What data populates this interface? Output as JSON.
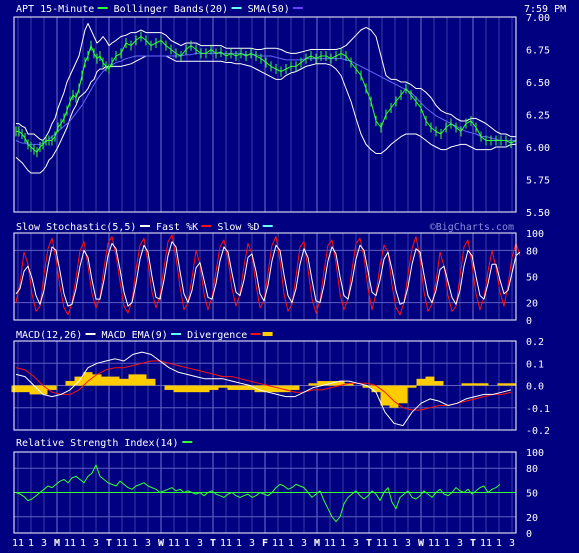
{
  "colors": {
    "background": "#000080",
    "frame": "#FFFFFF",
    "text": "#FFFFFF",
    "grid": "#3C3CA8",
    "price": "#33FF33",
    "bollinger": "#FFFFFF",
    "sma": "#6666FF",
    "fast_k": "#FF1111",
    "slow_d": "#FFFFFF",
    "macd": "#FFFFFF",
    "macd_ema": "#FF1111",
    "divergence": "#FFCC00",
    "rsi": "#33FF33",
    "legend_cyan": "#66FFFF",
    "legend_violet": "#6644FF"
  },
  "timestamp": "7:59 PM",
  "watermark": "©BigCharts.com",
  "chart_data": [
    {
      "type": "line",
      "id": "price",
      "legend": [
        {
          "label": "APT 15-Minute",
          "color": "#33FF33"
        },
        {
          "label": "Bollinger Bands(20)",
          "color": "#66FFFF"
        },
        {
          "label": "SMA(50)",
          "color": "#6644FF"
        }
      ],
      "ylim": [
        5.5,
        7.0
      ],
      "yticks": [
        "7.00",
        "6.75",
        "6.50",
        "6.25",
        "6.00",
        "5.75",
        "5.50"
      ],
      "ytick_values": [
        7.0,
        6.75,
        6.5,
        6.25,
        6.0,
        5.75,
        5.5
      ],
      "bar_x": [
        0,
        3,
        6,
        9,
        12,
        15,
        18,
        21,
        24,
        27,
        30,
        33,
        36,
        39,
        42,
        45,
        48,
        51,
        54,
        57,
        60,
        63,
        66,
        69,
        72,
        75,
        78,
        81,
        84,
        87,
        90,
        93,
        96,
        100,
        105,
        110,
        115,
        120,
        125,
        130,
        135,
        140,
        145,
        150,
        155,
        160,
        165,
        170,
        175,
        180,
        185,
        190,
        195,
        200,
        205,
        210,
        215,
        220,
        225,
        230,
        235,
        240,
        245,
        250,
        255,
        260,
        265,
        270,
        275,
        280,
        285,
        290,
        295,
        300,
        305,
        310,
        315,
        320,
        325,
        330,
        335,
        340,
        345,
        350,
        355,
        360,
        365,
        370,
        375,
        380,
        385,
        390,
        395,
        400,
        405,
        410,
        415,
        420,
        425,
        430,
        435,
        440,
        445,
        450,
        455,
        460,
        465,
        470,
        475,
        480,
        485,
        490,
        495,
        500
      ],
      "price": [
        6.12,
        6.12,
        6.1,
        6.07,
        6.02,
        6.0,
        5.98,
        5.96,
        6.0,
        6.02,
        6.05,
        6.05,
        6.05,
        6.08,
        6.15,
        6.18,
        6.22,
        6.28,
        6.35,
        6.4,
        6.38,
        6.45,
        6.55,
        6.65,
        6.7,
        6.78,
        6.72,
        6.68,
        6.7,
        6.65,
        6.62,
        6.6,
        6.65,
        6.7,
        6.72,
        6.8,
        6.78,
        6.82,
        6.85,
        6.82,
        6.78,
        6.8,
        6.82,
        6.78,
        6.75,
        6.72,
        6.7,
        6.75,
        6.78,
        6.75,
        6.72,
        6.72,
        6.75,
        6.72,
        6.73,
        6.7,
        6.72,
        6.7,
        6.72,
        6.7,
        6.72,
        6.7,
        6.68,
        6.65,
        6.62,
        6.6,
        6.58,
        6.6,
        6.62,
        6.62,
        6.65,
        6.68,
        6.7,
        6.68,
        6.7,
        6.7,
        6.68,
        6.7,
        6.72,
        6.7,
        6.65,
        6.6,
        6.55,
        6.45,
        6.35,
        6.2,
        6.15,
        6.25,
        6.3,
        6.35,
        6.4,
        6.45,
        6.4,
        6.35,
        6.3,
        6.2,
        6.15,
        6.12,
        6.1,
        6.15,
        6.18,
        6.15,
        6.12,
        6.18,
        6.2,
        6.15,
        6.08,
        6.05,
        6.05,
        6.05,
        6.05,
        6.05,
        6.03,
        6.05
      ],
      "bollinger_upper": [
        6.18,
        6.18,
        6.16,
        6.15,
        6.1,
        6.1,
        6.1,
        6.08,
        6.06,
        6.05,
        6.08,
        6.12,
        6.18,
        6.22,
        6.3,
        6.36,
        6.42,
        6.5,
        6.55,
        6.6,
        6.65,
        6.7,
        6.8,
        6.9,
        6.95,
        6.9,
        6.85,
        6.8,
        6.82,
        6.85,
        6.82,
        6.78,
        6.8,
        6.82,
        6.85,
        6.86,
        6.88,
        6.88,
        6.9,
        6.88,
        6.88,
        6.88,
        6.88,
        6.86,
        6.82,
        6.8,
        6.78,
        6.8,
        6.8,
        6.8,
        6.78,
        6.78,
        6.78,
        6.78,
        6.78,
        6.76,
        6.76,
        6.76,
        6.76,
        6.76,
        6.76,
        6.75,
        6.75,
        6.76,
        6.76,
        6.76,
        6.75,
        6.73,
        6.72,
        6.72,
        6.73,
        6.74,
        6.75,
        6.75,
        6.75,
        6.75,
        6.75,
        6.75,
        6.76,
        6.78,
        6.82,
        6.86,
        6.9,
        6.92,
        6.9,
        6.85,
        6.7,
        6.55,
        6.52,
        6.52,
        6.5,
        6.5,
        6.48,
        6.45,
        6.45,
        6.42,
        6.38,
        6.32,
        6.28,
        6.26,
        6.25,
        6.22,
        6.2,
        6.2,
        6.22,
        6.22,
        6.2,
        6.18,
        6.15,
        6.12,
        6.1,
        6.1,
        6.08,
        6.08
      ],
      "bollinger_lower": [
        5.92,
        5.9,
        5.88,
        5.85,
        5.82,
        5.8,
        5.8,
        5.8,
        5.8,
        5.82,
        5.85,
        5.9,
        5.92,
        5.96,
        6.0,
        6.05,
        6.1,
        6.15,
        6.22,
        6.28,
        6.32,
        6.38,
        6.4,
        6.42,
        6.45,
        6.5,
        6.52,
        6.58,
        6.6,
        6.6,
        6.62,
        6.62,
        6.62,
        6.62,
        6.62,
        6.63,
        6.64,
        6.66,
        6.68,
        6.7,
        6.7,
        6.7,
        6.7,
        6.7,
        6.68,
        6.66,
        6.66,
        6.66,
        6.66,
        6.66,
        6.66,
        6.66,
        6.66,
        6.66,
        6.66,
        6.65,
        6.65,
        6.64,
        6.64,
        6.63,
        6.62,
        6.6,
        6.58,
        6.56,
        6.54,
        6.52,
        6.52,
        6.55,
        6.57,
        6.58,
        6.6,
        6.62,
        6.63,
        6.64,
        6.64,
        6.64,
        6.63,
        6.6,
        6.55,
        6.45,
        6.35,
        6.22,
        6.1,
        6.02,
        5.98,
        5.95,
        5.95,
        5.98,
        6.02,
        6.05,
        6.08,
        6.1,
        6.1,
        6.1,
        6.08,
        6.05,
        6.02,
        6.0,
        5.98,
        5.98,
        6.0,
        6.01,
        6.02,
        6.02,
        6.0,
        5.98,
        5.98,
        5.98,
        5.98,
        6.0,
        6.0,
        6.0,
        6.02,
        6.02
      ],
      "sma": [
        6.05,
        6.04,
        6.03,
        6.03,
        6.02,
        6.02,
        6.02,
        6.02,
        6.02,
        6.03,
        6.04,
        6.06,
        6.08,
        6.1,
        6.12,
        6.14,
        6.16,
        6.18,
        6.2,
        6.23,
        6.26,
        6.29,
        6.32,
        6.36,
        6.4,
        6.44,
        6.48,
        6.52,
        6.55,
        6.58,
        6.6,
        6.62,
        6.63,
        6.65,
        6.66,
        6.68,
        6.69,
        6.7,
        6.7,
        6.7,
        6.7,
        6.7,
        6.7,
        6.7,
        6.7,
        6.7,
        6.7,
        6.71,
        6.71,
        6.72,
        6.72,
        6.72,
        6.72,
        6.72,
        6.72,
        6.72,
        6.72,
        6.72,
        6.72,
        6.71,
        6.71,
        6.71,
        6.7,
        6.7,
        6.7,
        6.69,
        6.68,
        6.67,
        6.67,
        6.67,
        6.67,
        6.68,
        6.68,
        6.68,
        6.68,
        6.68,
        6.68,
        6.68,
        6.68,
        6.67,
        6.66,
        6.64,
        6.62,
        6.6,
        6.58,
        6.56,
        6.54,
        6.52,
        6.5,
        6.48,
        6.46,
        6.44,
        6.42,
        6.38,
        6.34,
        6.3,
        6.27,
        6.24,
        6.22,
        6.2,
        6.18,
        6.16,
        6.14,
        6.12,
        6.11,
        6.1,
        6.08,
        6.08,
        6.07,
        6.06,
        6.05,
        6.05,
        6.05,
        6.05
      ]
    },
    {
      "type": "line",
      "id": "stochastic",
      "legend": [
        {
          "label": "Slow Stochastic(5,5)",
          "color": "#FFFFFF"
        },
        {
          "label": "Fast %K",
          "color": "#FF1111"
        },
        {
          "label": "Slow %D",
          "color": "#66FFFF"
        }
      ],
      "ylim": [
        0,
        100
      ],
      "yticks": [
        "100",
        "80",
        "50",
        "20",
        "0"
      ],
      "ytick_values": [
        100,
        80,
        50,
        20,
        0
      ],
      "gridlines": [
        80,
        20
      ],
      "x_step": 4,
      "fast_k": [
        20,
        42,
        78,
        64,
        30,
        10,
        16,
        52,
        82,
        94,
        70,
        38,
        14,
        6,
        20,
        48,
        80,
        90,
        62,
        30,
        14,
        26,
        60,
        88,
        96,
        74,
        44,
        16,
        8,
        22,
        58,
        86,
        94,
        66,
        32,
        14,
        28,
        60,
        90,
        98,
        72,
        38,
        12,
        20,
        48,
        80,
        64,
        30,
        12,
        26,
        56,
        84,
        92,
        70,
        36,
        16,
        30,
        62,
        88,
        76,
        40,
        14,
        22,
        54,
        86,
        96,
        68,
        30,
        10,
        18,
        50,
        84,
        90,
        58,
        24,
        8,
        22,
        56,
        86,
        92,
        66,
        30,
        12,
        24,
        58,
        88,
        94,
        72,
        36,
        12,
        30,
        62,
        86,
        78,
        40,
        14,
        6,
        20,
        52,
        82,
        96,
        70,
        32,
        10,
        18,
        44,
        78,
        62,
        28,
        10,
        16,
        50,
        84,
        92,
        64,
        30,
        12,
        26,
        56,
        80,
        60,
        32,
        16,
        40,
        72,
        88,
        74
      ],
      "slow_d": [
        30,
        36,
        56,
        62,
        48,
        28,
        18,
        34,
        62,
        84,
        80,
        56,
        30,
        16,
        18,
        36,
        62,
        80,
        72,
        46,
        24,
        24,
        46,
        74,
        88,
        82,
        58,
        32,
        16,
        20,
        42,
        70,
        86,
        78,
        50,
        26,
        24,
        46,
        74,
        90,
        84,
        56,
        30,
        20,
        34,
        60,
        66,
        46,
        26,
        24,
        42,
        68,
        84,
        78,
        54,
        32,
        28,
        46,
        72,
        76,
        56,
        30,
        22,
        40,
        68,
        86,
        80,
        52,
        28,
        20,
        36,
        64,
        82,
        72,
        46,
        22,
        20,
        40,
        68,
        84,
        76,
        50,
        28,
        24,
        44,
        70,
        86,
        80,
        56,
        32,
        28,
        46,
        70,
        78,
        58,
        34,
        18,
        20,
        38,
        64,
        82,
        78,
        52,
        28,
        20,
        34,
        58,
        62,
        44,
        26,
        18,
        34,
        62,
        80,
        74,
        50,
        28,
        24,
        42,
        64,
        64,
        46,
        30,
        34,
        54,
        74,
        78
      ]
    },
    {
      "type": "line",
      "id": "macd",
      "legend": [
        {
          "label": "MACD(12,26)",
          "color": "#FFFFFF"
        },
        {
          "label": "MACD EMA(9)",
          "color": "#66FFFF"
        },
        {
          "label": "Divergence",
          "color": "#FF1111"
        }
      ],
      "legend_swatch_extra": "#FFCC00",
      "ylim": [
        -0.2,
        0.2
      ],
      "yticks": [
        "0.2",
        "0.1",
        "0.0",
        "-0.1",
        "-0.2"
      ],
      "ytick_values": [
        0.2,
        0.1,
        0.0,
        -0.1,
        -0.2
      ],
      "gridlines": [
        0.1,
        0.0,
        -0.1
      ],
      "x_step": 10,
      "macd": [
        0.05,
        0.04,
        0.0,
        -0.04,
        -0.05,
        -0.04,
        -0.02,
        0.02,
        0.08,
        0.1,
        0.11,
        0.12,
        0.11,
        0.14,
        0.15,
        0.14,
        0.11,
        0.08,
        0.06,
        0.05,
        0.04,
        0.03,
        0.03,
        0.03,
        0.02,
        0.01,
        0.0,
        -0.02,
        -0.03,
        -0.04,
        -0.05,
        -0.05,
        -0.03,
        -0.01,
        0.0,
        0.01,
        0.02,
        0.02,
        0.01,
        0.0,
        -0.03,
        -0.12,
        -0.17,
        -0.18,
        -0.12,
        -0.08,
        -0.06,
        -0.07,
        -0.09,
        -0.08,
        -0.06,
        -0.05,
        -0.04,
        -0.04,
        -0.03,
        -0.02
      ],
      "macd_ema": [
        0.08,
        0.07,
        0.04,
        0.0,
        -0.03,
        -0.04,
        -0.04,
        -0.02,
        0.02,
        0.05,
        0.07,
        0.08,
        0.08,
        0.09,
        0.1,
        0.11,
        0.11,
        0.1,
        0.09,
        0.08,
        0.07,
        0.06,
        0.05,
        0.04,
        0.04,
        0.03,
        0.02,
        0.01,
        0.0,
        -0.01,
        -0.02,
        -0.03,
        -0.03,
        -0.02,
        -0.02,
        -0.01,
        0.0,
        0.01,
        0.01,
        0.01,
        0.0,
        -0.03,
        -0.07,
        -0.1,
        -0.11,
        -0.11,
        -0.1,
        -0.09,
        -0.09,
        -0.08,
        -0.07,
        -0.06,
        -0.05,
        -0.04,
        -0.04,
        -0.03
      ],
      "divergence": [
        -0.03,
        -0.03,
        -0.04,
        -0.04,
        -0.02,
        0.0,
        0.02,
        0.04,
        0.06,
        0.05,
        0.04,
        0.04,
        0.03,
        0.05,
        0.05,
        0.03,
        0.0,
        -0.02,
        -0.03,
        -0.03,
        -0.03,
        -0.03,
        -0.02,
        -0.01,
        -0.02,
        -0.02,
        -0.02,
        -0.03,
        -0.03,
        -0.03,
        -0.03,
        -0.02,
        0.0,
        0.01,
        0.02,
        0.02,
        0.02,
        0.01,
        0.0,
        -0.01,
        -0.03,
        -0.09,
        -0.1,
        -0.08,
        -0.01,
        0.03,
        0.04,
        0.02,
        0.0,
        0.0,
        0.01,
        0.01,
        0.01,
        0.0,
        0.01,
        0.01
      ]
    },
    {
      "type": "line",
      "id": "rsi",
      "legend": [
        {
          "label": "Relative Strength Index(14)",
          "color": "#33FF33"
        }
      ],
      "ylim": [
        0,
        100
      ],
      "yticks": [
        "100",
        "80",
        "50",
        "20",
        "0"
      ],
      "ytick_values": [
        100,
        80,
        50,
        20,
        0
      ],
      "gridlines": [
        80,
        50,
        20
      ],
      "x_step": 4,
      "rsi": [
        50,
        48,
        45,
        40,
        42,
        46,
        50,
        54,
        58,
        56,
        60,
        64,
        66,
        62,
        68,
        70,
        66,
        62,
        70,
        74,
        84,
        70,
        66,
        62,
        60,
        58,
        64,
        60,
        56,
        54,
        58,
        60,
        62,
        58,
        56,
        54,
        50,
        52,
        54,
        56,
        52,
        54,
        50,
        52,
        50,
        48,
        50,
        46,
        50,
        52,
        48,
        46,
        44,
        48,
        50,
        46,
        44,
        46,
        48,
        44,
        46,
        50,
        48,
        46,
        50,
        56,
        60,
        58,
        54,
        56,
        60,
        58,
        56,
        50,
        44,
        48,
        52,
        40,
        30,
        20,
        14,
        20,
        36,
        44,
        48,
        52,
        46,
        42,
        46,
        52,
        48,
        40,
        50,
        56,
        38,
        30,
        44,
        48,
        52,
        44,
        42,
        46,
        52,
        48,
        44,
        50,
        54,
        48,
        46,
        50,
        56,
        52,
        50,
        54,
        48,
        52,
        56,
        58,
        50,
        54,
        56,
        60
      ]
    }
  ],
  "x_axis": {
    "labels": [
      "11",
      "1",
      "3",
      "M",
      "11",
      "1",
      "3",
      "T",
      "11",
      "1",
      "3",
      "W",
      "11",
      "1",
      "3",
      "T",
      "11",
      "1",
      "3",
      "F",
      "11",
      "1",
      "3",
      "M",
      "11",
      "1",
      "3",
      "T",
      "11",
      "1",
      "3",
      "W",
      "11",
      "1",
      "3",
      "T",
      "11",
      "1",
      "3"
    ],
    "bold_labels": [
      "M",
      "T",
      "W",
      "F"
    ]
  }
}
